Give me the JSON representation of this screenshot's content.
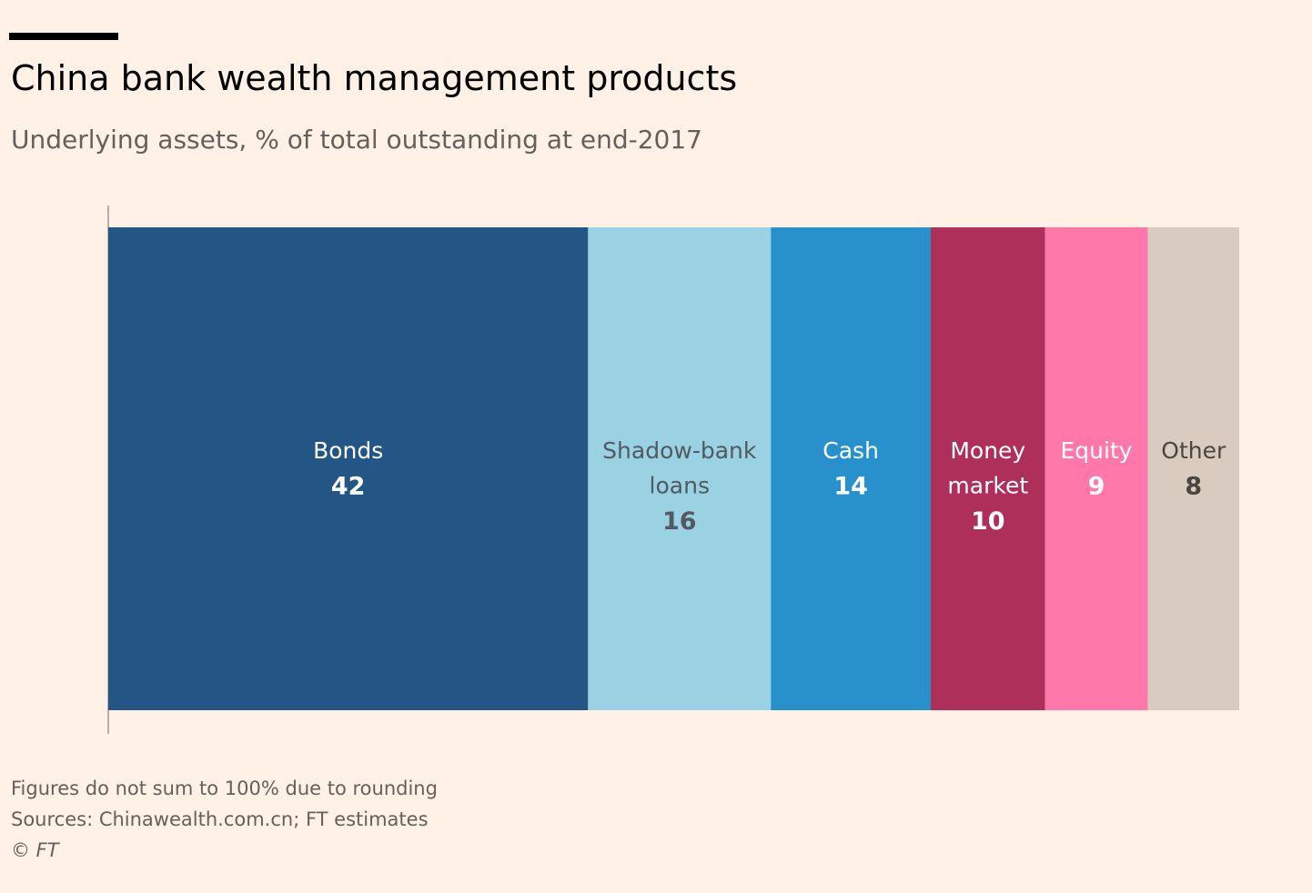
{
  "header": {
    "title": "China bank wealth management products",
    "subtitle": "Underlying assets, % of total outstanding at end-2017"
  },
  "chart_data": {
    "type": "bar",
    "orientation": "horizontal-stacked",
    "title": "China bank wealth management products",
    "subtitle": "Underlying assets, % of total outstanding at end-2017",
    "categories": [
      "Bonds",
      "Shadow-bank loans",
      "Cash",
      "Money market",
      "Equity",
      "Other"
    ],
    "values": [
      42,
      16,
      14,
      10,
      9,
      8
    ],
    "series": [
      {
        "name": "Bonds",
        "label_lines": [
          "Bonds"
        ],
        "value": 42,
        "color": "#235685",
        "text_color": "#ffffff"
      },
      {
        "name": "Shadow-bank loans",
        "label_lines": [
          "Shadow-bank",
          "loans"
        ],
        "value": 16,
        "color": "#9ad2e4",
        "text_color": "#505a60"
      },
      {
        "name": "Cash",
        "label_lines": [
          "Cash"
        ],
        "value": 14,
        "color": "#2890ca",
        "text_color": "#ffffff"
      },
      {
        "name": "Money market",
        "label_lines": [
          "Money",
          "market"
        ],
        "value": 10,
        "color": "#af2f5b",
        "text_color": "#ffffff"
      },
      {
        "name": "Equity",
        "label_lines": [
          "Equity"
        ],
        "value": 9,
        "color": "#ff78a9",
        "text_color": "#ffffff"
      },
      {
        "name": "Other",
        "label_lines": [
          "Other"
        ],
        "value": 8,
        "color": "#d9cbc0",
        "text_color": "#4a4540"
      }
    ],
    "legend": "none (labels inside segments)",
    "grid": false
  },
  "footer": {
    "note": "Figures do not sum to 100% due to rounding",
    "sources": "Sources: Chinawealth.com.cn; FT estimates",
    "credit": "© FT"
  }
}
